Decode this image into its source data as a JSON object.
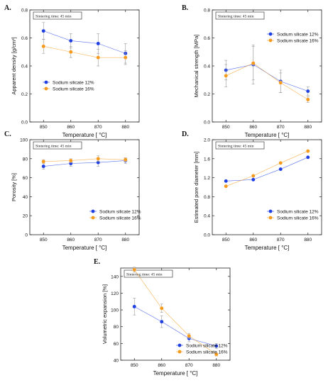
{
  "colors": {
    "series_a": "#1f3fe0",
    "series_b": "#f59a1c",
    "axis": "#222222"
  },
  "charts": [
    {
      "letter": "A.",
      "type": "line",
      "annotation": "Sintering time: 45 min",
      "legend_position": "bottom-left",
      "xlabel": "Temperature [ °C]",
      "ylabel": "Apparent density [g/cm³]",
      "x": [
        850,
        860,
        870,
        880
      ],
      "xlim": [
        845,
        885
      ],
      "ylim": [
        0.0,
        0.8
      ],
      "yticks": [
        0.0,
        0.2,
        0.4,
        0.6,
        0.8
      ],
      "ytick_labels": [
        "0.0",
        "0.2",
        "0.4",
        "0.6",
        "0.8"
      ],
      "series": [
        {
          "name": "Sodium silicate 12%",
          "values": [
            0.65,
            0.58,
            0.56,
            0.49
          ],
          "errors": [
            0.06,
            0.05,
            0.07,
            0.07
          ]
        },
        {
          "name": "Sodium silicate 16%",
          "values": [
            0.54,
            0.5,
            0.46,
            0.46
          ],
          "errors": [
            0.05,
            0.04,
            0.06,
            0.05
          ]
        }
      ]
    },
    {
      "letter": "B.",
      "type": "line",
      "annotation": "Sintering time: 45 min",
      "legend_position": "top-right",
      "xlabel": "Temperature [ °C]",
      "ylabel": "Mechanical strength [MPa]",
      "x": [
        850,
        860,
        870,
        880
      ],
      "xlim": [
        845,
        885
      ],
      "ylim": [
        0.0,
        0.8
      ],
      "yticks": [
        0.0,
        0.2,
        0.4,
        0.6,
        0.8
      ],
      "ytick_labels": [
        "0.0",
        "0.2",
        "0.4",
        "0.6",
        "0.8"
      ],
      "series": [
        {
          "name": "Sodium silicate 12%",
          "values": [
            0.37,
            0.41,
            0.29,
            0.22
          ],
          "errors": [
            0.07,
            0.14,
            0.08,
            0.03
          ]
        },
        {
          "name": "Sodium silicate 16%",
          "values": [
            0.33,
            0.42,
            0.28,
            0.16
          ],
          "errors": [
            0.08,
            0.12,
            0.07,
            0.02
          ]
        }
      ]
    },
    {
      "letter": "C.",
      "type": "line",
      "annotation": "Sintering time: 45 min",
      "legend_position": "bottom-right",
      "xlabel": "Temperature [ °C]",
      "ylabel": "Porosity [%]",
      "x": [
        850,
        860,
        870,
        880
      ],
      "xlim": [
        845,
        885
      ],
      "ylim": [
        0,
        100
      ],
      "yticks": [
        0,
        20,
        40,
        60,
        80,
        100
      ],
      "ytick_labels": [
        "0",
        "20",
        "40",
        "60",
        "80",
        "100"
      ],
      "series": [
        {
          "name": "Sodium silicate 12%",
          "values": [
            72,
            75,
            76,
            78
          ],
          "errors": [
            3,
            3,
            4,
            3
          ]
        },
        {
          "name": "Sodium silicate 16%",
          "values": [
            77,
            78,
            80,
            79
          ],
          "errors": [
            2,
            2,
            3,
            2
          ]
        }
      ]
    },
    {
      "letter": "D.",
      "type": "line",
      "annotation": "Sintering time: 45 min",
      "legend_position": "bottom-right",
      "xlabel": "Temperature [ °C]",
      "ylabel": "Estimated pore diameter [mm]",
      "x": [
        850,
        860,
        870,
        880
      ],
      "xlim": [
        845,
        885
      ],
      "ylim": [
        0.0,
        2.0
      ],
      "yticks": [
        0.0,
        0.4,
        0.8,
        1.2,
        1.6,
        2.0
      ],
      "ytick_labels": [
        "0.0",
        "0.4",
        "0.8",
        "1.2",
        "1.6",
        "2.0"
      ],
      "series": [
        {
          "name": "Sodium silicate 12%",
          "values": [
            1.13,
            1.16,
            1.38,
            1.63
          ],
          "errors": [
            0,
            0,
            0,
            0
          ]
        },
        {
          "name": "Sodium silicate 16%",
          "values": [
            1.02,
            1.24,
            1.51,
            1.76
          ],
          "errors": [
            0,
            0,
            0,
            0
          ]
        }
      ]
    },
    {
      "letter": "E.",
      "type": "line",
      "annotation": "Sintering time: 45 min",
      "legend_position": "bottom-right",
      "xlabel": "Temperature [ °C]",
      "ylabel": "Volumetric expansion [%]",
      "x": [
        850,
        860,
        870,
        880
      ],
      "xlim": [
        845,
        885
      ],
      "ylim": [
        40,
        150
      ],
      "yticks": [
        40,
        60,
        80,
        100,
        120,
        140
      ],
      "ytick_labels": [
        "40",
        "60",
        "80",
        "100",
        "120",
        "140"
      ],
      "series": [
        {
          "name": "Sodium silicate 12%",
          "values": [
            104,
            86,
            66,
            57
          ],
          "errors": [
            10,
            7,
            4,
            3
          ]
        },
        {
          "name": "Sodium silicate 16%",
          "values": [
            148,
            102,
            69,
            47
          ],
          "errors": [
            3,
            5,
            3,
            2
          ]
        }
      ]
    }
  ]
}
